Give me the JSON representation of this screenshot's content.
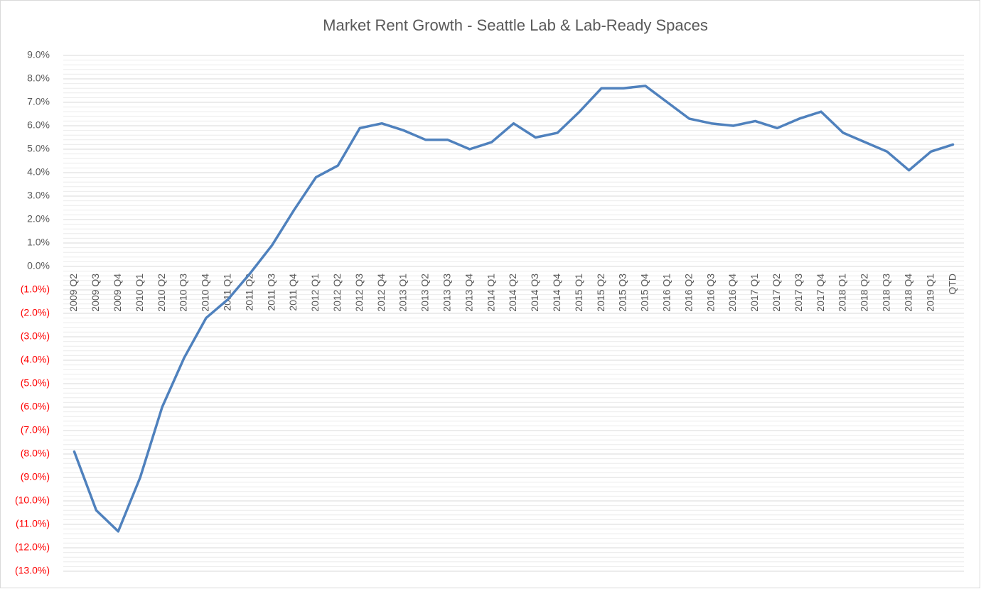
{
  "chart_data": {
    "type": "line",
    "title": "Market Rent Growth - Seattle Lab & Lab-Ready Spaces",
    "categories": [
      "2009 Q2",
      "2009 Q3",
      "2009 Q4",
      "2010 Q1",
      "2010 Q2",
      "2010 Q3",
      "2010 Q4",
      "2011 Q1",
      "2011 Q2",
      "2011 Q3",
      "2011 Q4",
      "2012 Q1",
      "2012 Q2",
      "2012 Q3",
      "2012 Q4",
      "2013 Q1",
      "2013 Q2",
      "2013 Q3",
      "2013 Q4",
      "2014 Q1",
      "2014 Q2",
      "2014 Q3",
      "2014 Q4",
      "2015 Q1",
      "2015 Q2",
      "2015 Q3",
      "2015 Q4",
      "2016 Q1",
      "2016 Q2",
      "2016 Q3",
      "2016 Q4",
      "2017 Q1",
      "2017 Q2",
      "2017 Q3",
      "2017 Q4",
      "2018 Q1",
      "2018 Q2",
      "2018 Q3",
      "2018 Q4",
      "2019 Q1",
      "QTD"
    ],
    "values": [
      -7.9,
      -10.4,
      -11.3,
      -9.0,
      -6.0,
      -3.9,
      -2.2,
      -1.4,
      -0.3,
      0.9,
      2.4,
      3.8,
      4.3,
      5.9,
      6.1,
      5.8,
      5.4,
      5.4,
      5.0,
      5.3,
      6.1,
      5.5,
      5.7,
      6.6,
      7.6,
      7.6,
      7.7,
      7.0,
      6.3,
      6.1,
      6.0,
      6.2,
      5.9,
      6.3,
      6.6,
      5.7,
      5.3,
      4.9,
      4.1,
      4.9,
      5.2
    ],
    "color": "#4f81bd",
    "ylim": [
      -13,
      9
    ],
    "yticks": [
      {
        "value": 9,
        "label": "9.0%"
      },
      {
        "value": 8,
        "label": "8.0%"
      },
      {
        "value": 7,
        "label": "7.0%"
      },
      {
        "value": 6,
        "label": "6.0%"
      },
      {
        "value": 5,
        "label": "5.0%"
      },
      {
        "value": 4,
        "label": "4.0%"
      },
      {
        "value": 3,
        "label": "3.0%"
      },
      {
        "value": 2,
        "label": "2.0%"
      },
      {
        "value": 1,
        "label": "1.0%"
      },
      {
        "value": 0,
        "label": "0.0%"
      },
      {
        "value": -1,
        "label": "(1.0%)"
      },
      {
        "value": -2,
        "label": "(2.0%)"
      },
      {
        "value": -3,
        "label": "(3.0%)"
      },
      {
        "value": -4,
        "label": "(4.0%)"
      },
      {
        "value": -5,
        "label": "(5.0%)"
      },
      {
        "value": -6,
        "label": "(6.0%)"
      },
      {
        "value": -7,
        "label": "(7.0%)"
      },
      {
        "value": -8,
        "label": "(8.0%)"
      },
      {
        "value": -9,
        "label": "(9.0%)"
      },
      {
        "value": -10,
        "label": "(10.0%)"
      },
      {
        "value": -11,
        "label": "(11.0%)"
      },
      {
        "value": -12,
        "label": "(12.0%)"
      },
      {
        "value": -13,
        "label": "(13.0%)"
      }
    ],
    "negative_tick_color": "#ff0000",
    "grid": true,
    "minor_grid": true
  }
}
